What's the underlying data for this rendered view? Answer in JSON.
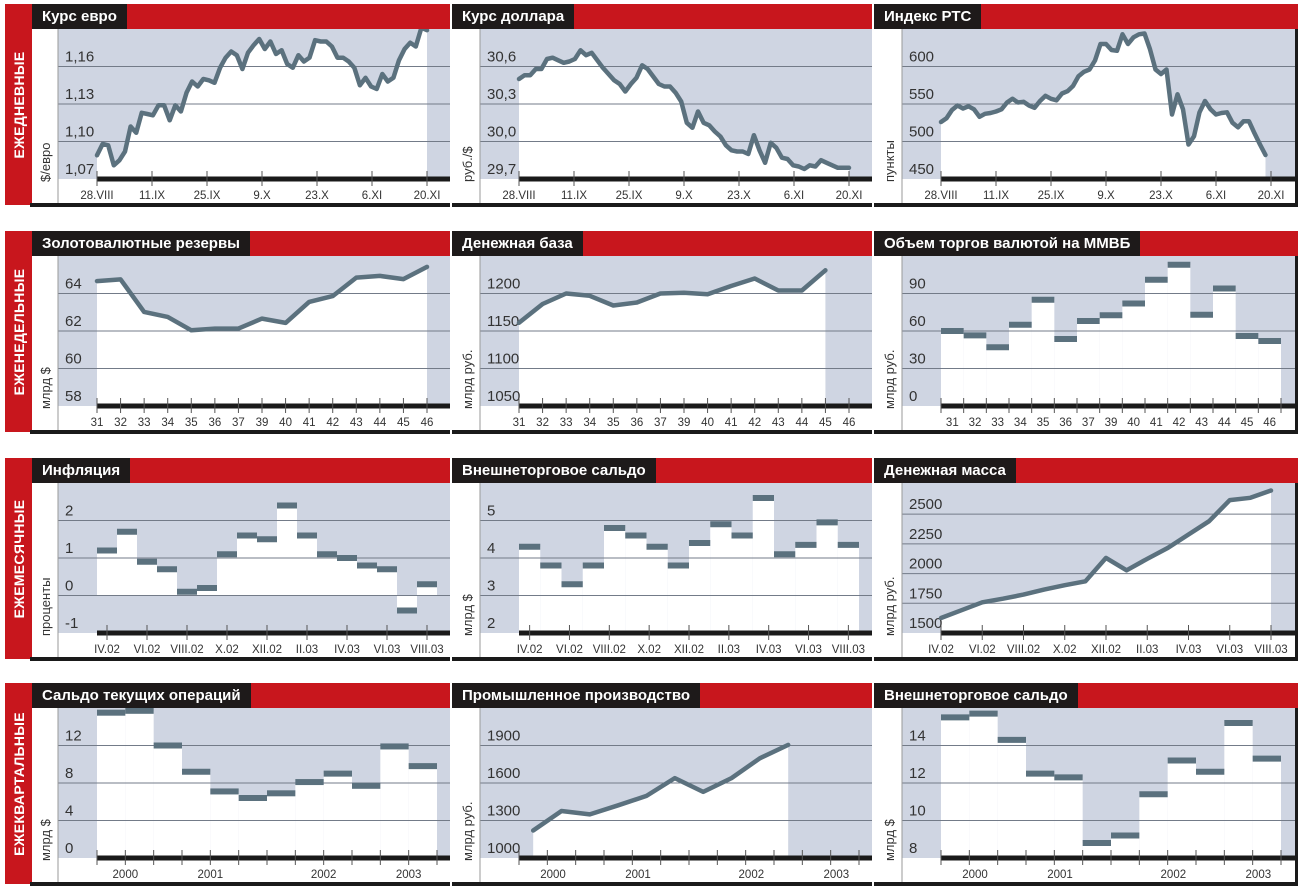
{
  "bands": [
    {
      "label": "ЕЖЕДНЕВНЫЕ"
    },
    {
      "label": "ЕЖЕНЕДЕЛЬНЫЕ"
    },
    {
      "label": "ЕЖЕМЕСЯЧНЫЕ"
    },
    {
      "label": "ЕЖЕКВАРТАЛЬНЫЕ"
    }
  ],
  "colors": {
    "red": "#c8161d",
    "title_bg": "#1e1a1a",
    "plot_bg": "#cfd5e2",
    "series": "#5b717e"
  },
  "chart_data": [
    {
      "title": "Курс евро",
      "type": "line",
      "ylabel": "$/евро",
      "ylim": [
        1.07,
        1.1876
      ],
      "yticks": [
        1.07,
        1.1,
        1.13,
        1.16
      ],
      "ytick_labels": [
        "1,07",
        "1,10",
        "1,13",
        "1,16"
      ],
      "x_domain": [
        0,
        60
      ],
      "x_first": 0,
      "x_last": 60,
      "xticks": [
        0,
        10,
        20,
        30,
        40,
        50,
        60
      ],
      "xtick_labels": [
        "28.VIII",
        "11.IX",
        "25.IX",
        "9.X",
        "23.X",
        "6.XI",
        "20.XI"
      ],
      "xlabel_pos": [
        0,
        10,
        20,
        30,
        40,
        50,
        60
      ],
      "values": [
        1.089,
        1.098,
        1.097,
        1.081,
        1.085,
        1.092,
        1.112,
        1.107,
        1.123,
        1.122,
        1.121,
        1.129,
        1.129,
        1.117,
        1.129,
        1.124,
        1.139,
        1.148,
        1.144,
        1.15,
        1.149,
        1.147,
        1.159,
        1.167,
        1.172,
        1.169,
        1.158,
        1.171,
        1.177,
        1.182,
        1.174,
        1.18,
        1.17,
        1.173,
        1.162,
        1.159,
        1.169,
        1.164,
        1.167,
        1.181,
        1.18,
        1.18,
        1.176,
        1.167,
        1.167,
        1.164,
        1.159,
        1.145,
        1.151,
        1.144,
        1.142,
        1.154,
        1.148,
        1.151,
        1.165,
        1.174,
        1.179,
        1.176,
        1.191,
        1.189
      ]
    },
    {
      "title": "Курс доллара",
      "type": "line",
      "ylabel": "руб./$",
      "ylim": [
        29.7,
        30.876
      ],
      "yticks": [
        29.7,
        30.0,
        30.3,
        30.6
      ],
      "ytick_labels": [
        "29,7",
        "30,0",
        "30,3",
        "30,6"
      ],
      "x_domain": [
        0,
        60
      ],
      "x_first": 0,
      "x_last": 60,
      "xticks": [
        0,
        10,
        20,
        30,
        40,
        50,
        60
      ],
      "xtick_labels": [
        "28.VIII",
        "11.IX",
        "25.IX",
        "9.X",
        "23.X",
        "6.XI",
        "20.XI"
      ],
      "xlabel_pos": [
        0,
        10,
        20,
        30,
        40,
        50,
        60
      ],
      "values": [
        30.5,
        30.53,
        30.53,
        30.58,
        30.58,
        30.66,
        30.67,
        30.65,
        30.63,
        30.64,
        30.66,
        30.73,
        30.69,
        30.71,
        30.65,
        30.59,
        30.54,
        30.49,
        30.46,
        30.4,
        30.46,
        30.51,
        30.61,
        30.58,
        30.52,
        30.46,
        30.44,
        30.44,
        30.39,
        30.32,
        30.15,
        30.11,
        30.24,
        30.15,
        30.13,
        30.08,
        30.04,
        29.97,
        29.93,
        29.92,
        29.92,
        29.9,
        30.05,
        29.93,
        29.83,
        29.99,
        29.95,
        29.87,
        29.86,
        29.81,
        29.8,
        29.78,
        29.81,
        29.8,
        29.85,
        29.83,
        29.81,
        29.79,
        29.79,
        29.79
      ]
    },
    {
      "title": "Индекс РТС",
      "type": "line",
      "ylabel": "пункты",
      "ylim": [
        450,
        646
      ],
      "yticks": [
        450,
        500,
        550,
        600
      ],
      "ytick_labels": [
        "450",
        "500",
        "550",
        "600"
      ],
      "x_domain": [
        0,
        60
      ],
      "x_first": 0,
      "x_last": 59,
      "xticks": [
        0,
        10,
        20,
        30,
        40,
        50,
        60
      ],
      "xtick_labels": [
        "28.VIII",
        "11.IX",
        "25.IX",
        "9.X",
        "23.X",
        "6.XI",
        "20.XI"
      ],
      "xlabel_pos": [
        0,
        10,
        20,
        30,
        40,
        50,
        60
      ],
      "values": [
        526,
        531,
        542,
        548,
        544,
        547,
        543,
        533,
        537,
        538,
        540,
        543,
        552,
        557,
        552,
        553,
        548,
        545,
        554,
        561,
        557,
        555,
        564,
        567,
        574,
        587,
        593,
        596,
        608,
        630,
        630,
        622,
        621,
        643,
        630,
        639,
        643,
        644,
        623,
        596,
        590,
        596,
        536,
        563,
        543,
        496,
        507,
        539,
        554,
        543,
        536,
        538,
        539,
        525,
        519,
        527,
        527,
        511,
        496,
        482
      ]
    },
    {
      "title": "Золотовалютные резервы",
      "type": "line",
      "ylabel": "млрд $",
      "ylim": [
        58,
        65.84
      ],
      "yticks": [
        58,
        60,
        62,
        64
      ],
      "ytick_labels": [
        "58",
        "60",
        "62",
        "64"
      ],
      "x_domain": [
        0,
        14
      ],
      "x_first": 0,
      "x_last": 14,
      "xticks": [
        0,
        1,
        2,
        3,
        4,
        5,
        6,
        7,
        8,
        9,
        10,
        11,
        12,
        13,
        14
      ],
      "xtick_labels": [
        "31",
        "32",
        "33",
        "34",
        "35",
        "36",
        "37",
        "39",
        "40",
        "41",
        "42",
        "43",
        "44",
        "45",
        "46"
      ],
      "xlabel_pos": [
        0,
        1,
        2,
        3,
        4,
        5,
        6,
        7,
        8,
        9,
        10,
        11,
        12,
        13,
        14
      ],
      "values": [
        64.66,
        64.75,
        63.02,
        62.75,
        62.04,
        62.13,
        62.13,
        62.66,
        62.43,
        63.55,
        63.86,
        64.85,
        64.94,
        64.77,
        65.42
      ]
    },
    {
      "title": "Денежная база",
      "type": "line",
      "ylabel": "млрд руб.",
      "ylim": [
        1050,
        1246
      ],
      "yticks": [
        1050,
        1100,
        1150,
        1200
      ],
      "ytick_labels": [
        "1050",
        "1100",
        "1150",
        "1200"
      ],
      "x_domain": [
        0,
        14
      ],
      "x_first": 0,
      "x_last": 13,
      "xticks": [
        0,
        1,
        2,
        3,
        4,
        5,
        6,
        7,
        8,
        9,
        10,
        11,
        12,
        13,
        14
      ],
      "xtick_labels": [
        "31",
        "32",
        "33",
        "34",
        "35",
        "36",
        "37",
        "39",
        "40",
        "41",
        "42",
        "43",
        "44",
        "45",
        "46"
      ],
      "xlabel_pos": [
        0,
        1,
        2,
        3,
        4,
        5,
        6,
        7,
        8,
        9,
        10,
        11,
        12,
        13,
        14
      ],
      "values": [
        1161,
        1186,
        1200,
        1197,
        1184,
        1188,
        1200,
        1201,
        1199,
        1210,
        1220,
        1204,
        1204,
        1231
      ]
    },
    {
      "title": "Объем торгов валютой на ММВБ",
      "type": "bar",
      "ylabel": "млрд руб.",
      "ylim": [
        0,
        117.6
      ],
      "yticks": [
        0,
        30,
        60,
        90
      ],
      "ytick_labels": [
        "0",
        "30",
        "60",
        "90"
      ],
      "x_domain": [
        0,
        15
      ],
      "xticks": [
        0,
        1,
        2,
        3,
        4,
        5,
        6,
        7,
        8,
        9,
        10,
        11,
        12,
        13,
        14,
        15
      ],
      "xtick_labels": [
        "31",
        "32",
        "33",
        "34",
        "35",
        "36",
        "37",
        "39",
        "40",
        "41",
        "42",
        "43",
        "44",
        "45",
        "46"
      ],
      "xlabel_pos": [
        0.5,
        1.5,
        2.5,
        3.5,
        4.5,
        5.5,
        6.5,
        7.5,
        8.5,
        9.5,
        10.5,
        11.5,
        12.5,
        13.5,
        14.5
      ],
      "values": [
        60,
        56.5,
        47,
        65,
        85,
        53.6,
        68,
        72.6,
        82,
        101,
        113,
        73,
        94,
        56,
        52
      ]
    },
    {
      "title": "Инфляция",
      "type": "bar",
      "ylabel": "проценты",
      "ylim": [
        -1,
        2.92
      ],
      "yticks": [
        -1,
        0,
        1,
        2
      ],
      "ytick_labels": [
        "-1",
        "0",
        "1",
        "2"
      ],
      "x_domain": [
        0,
        17
      ],
      "xticks": [
        0.5,
        2.5,
        4.5,
        6.5,
        8.5,
        10.5,
        12.5,
        14.5,
        16.5
      ],
      "xtick_labels": [
        "IV.02",
        "VI.02",
        "VIII.02",
        "X.02",
        "XII.02",
        "II.03",
        "IV.03",
        "VI.03",
        "VIII.03"
      ],
      "xlabel_pos": [
        0.5,
        2.5,
        4.5,
        6.5,
        8.5,
        10.5,
        12.5,
        14.5,
        16.5
      ],
      "values": [
        1.2,
        1.7,
        0.9,
        0.7,
        0.1,
        0.2,
        1.1,
        1.6,
        1.5,
        2.4,
        1.6,
        1.1,
        1.0,
        0.8,
        0.7,
        -0.4,
        0.3
      ]
    },
    {
      "title": "Внешнеторговое сальдо",
      "type": "bar",
      "ylabel": "млрд $",
      "ylim": [
        2,
        5.92
      ],
      "yticks": [
        2,
        3,
        4,
        5
      ],
      "ytick_labels": [
        "2",
        "3",
        "4",
        "5"
      ],
      "x_domain": [
        0,
        16
      ],
      "xticks": [
        0.5,
        2.375,
        4.25,
        6.125,
        8,
        9.875,
        11.75,
        13.625,
        15.5
      ],
      "xtick_labels": [
        "IV.02",
        "VI.02",
        "VIII.02",
        "X.02",
        "XII.02",
        "II.03",
        "IV.03",
        "VI.03",
        "VIII.03"
      ],
      "xlabel_pos": [
        0.5,
        2.375,
        4.25,
        6.125,
        8,
        9.875,
        11.75,
        13.625,
        15.5
      ],
      "values": [
        4.3,
        3.8,
        3.3,
        3.8,
        4.8,
        4.6,
        4.3,
        3.8,
        4.4,
        4.9,
        4.6,
        5.6,
        4.1,
        4.35,
        4.95,
        4.35
      ]
    },
    {
      "title": "Денежная масса",
      "type": "line",
      "ylabel": "млрд руб.",
      "ylim": [
        1500,
        2737
      ],
      "yticks": [
        1500,
        1750,
        2000,
        2250,
        2500
      ],
      "ytick_labels": [
        "1500",
        "1750",
        "2000",
        "2250",
        "2500"
      ],
      "x_domain": [
        0,
        16
      ],
      "x_first": 0,
      "x_last": 16,
      "xticks": [
        0,
        2,
        4,
        6,
        8,
        10,
        12,
        14,
        16
      ],
      "xtick_labels": [
        "IV.02",
        "VI.02",
        "VIII.02",
        "X.02",
        "XII.02",
        "II.03",
        "IV.03",
        "VI.03",
        "VIII.03"
      ],
      "xlabel_pos": [
        0,
        2,
        4,
        6,
        8,
        10,
        12,
        14,
        16
      ],
      "values": [
        1626,
        1692,
        1758,
        1789,
        1823,
        1865,
        1902,
        1935,
        2132,
        2028,
        2124,
        2216,
        2329,
        2441,
        2618,
        2638,
        2699
      ]
    },
    {
      "title": "Сальдо текущих операций",
      "type": "bar",
      "ylabel": "млрд $",
      "ylim": [
        0,
        15.68
      ],
      "yticks": [
        0,
        4,
        8,
        12
      ],
      "ytick_labels": [
        "0",
        "4",
        "8",
        "12"
      ],
      "x_domain": [
        0,
        12
      ],
      "xticks": [
        0,
        1,
        2,
        3,
        4,
        5,
        6,
        7,
        8,
        9,
        10,
        11,
        12
      ],
      "xtick_labels": [
        "2000",
        "2001",
        "2002",
        "2003"
      ],
      "xlabel_pos": [
        1,
        4,
        8,
        11
      ],
      "values": [
        15.5,
        15.7,
        12.0,
        9.2,
        7.1,
        6.4,
        6.9,
        8.1,
        9.0,
        7.7,
        11.9,
        9.8
      ]
    },
    {
      "title": "Промышленное производство",
      "type": "line",
      "ylabel": "млрд руб.",
      "ylim": [
        1000,
        2176
      ],
      "yticks": [
        1000,
        1300,
        1600,
        1900
      ],
      "ytick_labels": [
        "1000",
        "1300",
        "1600",
        "1900"
      ],
      "x_domain": [
        0,
        12
      ],
      "x_first": 0.5,
      "x_last": 9.5,
      "xticks": [
        0,
        1,
        2,
        3,
        4,
        5,
        6,
        7,
        8,
        9,
        10,
        11,
        12
      ],
      "xtick_labels": [
        "2000",
        "2001",
        "2002",
        "2003"
      ],
      "xlabel_pos": [
        1.2,
        4.2,
        8.2,
        11.2
      ],
      "values": [
        1220,
        1376,
        1349,
        1422,
        1497,
        1639,
        1529,
        1639,
        1798,
        1905
      ]
    },
    {
      "title": "Внешнеторговое сальдо",
      "type": "bar",
      "ylabel": "млрд $",
      "ylim": [
        8,
        15.84
      ],
      "yticks": [
        8,
        10,
        12,
        14
      ],
      "ytick_labels": [
        "8",
        "10",
        "12",
        "14"
      ],
      "x_domain": [
        0,
        12
      ],
      "xticks": [
        0,
        1,
        2,
        3,
        4,
        5,
        6,
        7,
        8,
        9,
        10,
        11,
        12
      ],
      "xtick_labels": [
        "2000",
        "2001",
        "2002",
        "2003"
      ],
      "xlabel_pos": [
        1.2,
        4.2,
        8.2,
        11.2
      ],
      "values": [
        15.5,
        15.7,
        14.3,
        12.5,
        12.3,
        8.8,
        9.2,
        11.4,
        13.2,
        12.6,
        15.2,
        13.3
      ]
    }
  ]
}
